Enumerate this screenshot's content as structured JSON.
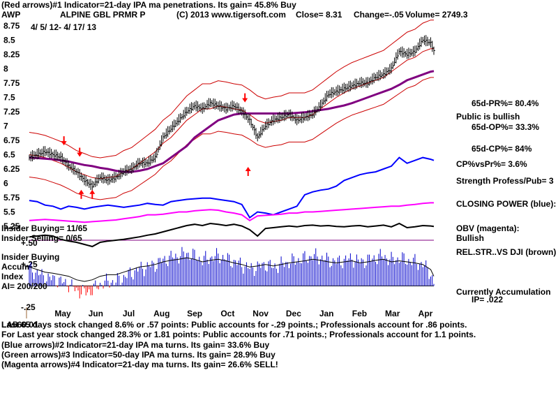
{
  "chart_data": {
    "type": "line",
    "title": "ALPINE GBL PRMR P",
    "symbol": "AWP",
    "date_range": "4/ 5/ 12- 4/ 17/ 13",
    "copyright": "(C) 2013 www.tigersoft.com",
    "close_label": "Close=  8.31",
    "change_label": "Change=-.05",
    "volume_label": "Volume= 2749.3",
    "price_axis": {
      "range": [
        5.25,
        8.75
      ],
      "ticks": [
        "8.75",
        "8.5",
        "8.25",
        "8",
        "7.75",
        "7.5",
        "7.25",
        "7",
        "6.75",
        "6.5",
        "6.25",
        "6",
        "5.75",
        "5.5",
        "5.25"
      ]
    },
    "x_tick_labels": [
      "May",
      "Jun",
      "Jul",
      "Aug",
      "Sep",
      "Oct",
      "Nov",
      "Dec",
      "Jan",
      "Feb",
      "Mar",
      "Apr"
    ],
    "accum_axis": {
      "range": [
        -0.25,
        0.5
      ],
      "ticks": [
        "+.50",
        "+.25",
        "-.25"
      ]
    },
    "price_series": {
      "name": "AWP close",
      "t": [
        0,
        5,
        10,
        15,
        20,
        25,
        30,
        35,
        40,
        45,
        50,
        55,
        60,
        65,
        70,
        75,
        80,
        85,
        90,
        95,
        100,
        105,
        110,
        115,
        120,
        125,
        130,
        135,
        140,
        145,
        150,
        155,
        160,
        165,
        170,
        175,
        180,
        185,
        190,
        195,
        200,
        205,
        210,
        215,
        220,
        225,
        230,
        235,
        240,
        245,
        250,
        255,
        257
      ],
      "values": [
        6.45,
        6.5,
        6.55,
        6.5,
        6.45,
        6.3,
        6.2,
        6.05,
        5.95,
        6.1,
        6.05,
        6.1,
        6.2,
        6.25,
        6.35,
        6.35,
        6.45,
        6.8,
        6.95,
        7.1,
        7.25,
        7.35,
        7.3,
        7.4,
        7.35,
        7.3,
        7.35,
        7.25,
        7.1,
        6.8,
        7.0,
        7.1,
        7.15,
        7.2,
        7.1,
        7.15,
        7.2,
        7.35,
        7.55,
        7.6,
        7.65,
        7.7,
        7.75,
        7.75,
        7.85,
        7.9,
        8.0,
        8.3,
        8.25,
        8.3,
        8.5,
        8.45,
        8.31
      ]
    },
    "ma_21_day": [
      6.5,
      6.48,
      6.45,
      6.4,
      6.35,
      6.28,
      6.2,
      6.15,
      6.1,
      6.08,
      6.1,
      6.12,
      6.2,
      6.25,
      6.35,
      6.45,
      6.55,
      6.7,
      6.8,
      6.95,
      7.1,
      7.2,
      7.3,
      7.3,
      7.35,
      7.33,
      7.3,
      7.28,
      7.2,
      7.1,
      7.05,
      7.08,
      7.1,
      7.15,
      7.15,
      7.15,
      7.2,
      7.3,
      7.4,
      7.5,
      7.58,
      7.65,
      7.7,
      7.75,
      7.8,
      7.85,
      7.95,
      8.05,
      8.15,
      8.2,
      8.3,
      8.35,
      8.35
    ],
    "ma_50_day": [
      6.45,
      6.44,
      6.43,
      6.42,
      6.4,
      6.38,
      6.35,
      6.32,
      6.3,
      6.27,
      6.25,
      6.22,
      6.2,
      6.2,
      6.22,
      6.25,
      6.3,
      6.35,
      6.45,
      6.55,
      6.65,
      6.8,
      6.9,
      7.0,
      7.1,
      7.15,
      7.2,
      7.22,
      7.22,
      7.22,
      7.22,
      7.22,
      7.22,
      7.22,
      7.23,
      7.24,
      7.26,
      7.28,
      7.3,
      7.33,
      7.36,
      7.4,
      7.45,
      7.5,
      7.55,
      7.6,
      7.65,
      7.72,
      7.8,
      7.85,
      7.9,
      7.95,
      7.96
    ],
    "closing_power": [
      5.7,
      5.68,
      5.62,
      5.6,
      5.55,
      5.6,
      5.58,
      5.55,
      5.58,
      5.6,
      5.62,
      5.6,
      5.58,
      5.6,
      5.62,
      5.65,
      5.63,
      5.62,
      5.68,
      5.7,
      5.72,
      5.73,
      5.74,
      5.74,
      5.72,
      5.7,
      5.68,
      5.63,
      5.4,
      5.5,
      5.48,
      5.45,
      5.5,
      5.55,
      5.6,
      5.8,
      5.85,
      5.88,
      5.9,
      5.95,
      6.05,
      6.1,
      6.15,
      6.18,
      6.2,
      6.25,
      6.3,
      6.45,
      6.35,
      6.4,
      6.45,
      6.42,
      6.4
    ],
    "obv_magenta": [
      5.35,
      5.36,
      5.37,
      5.36,
      5.35,
      5.34,
      5.33,
      5.32,
      5.33,
      5.34,
      5.35,
      5.36,
      5.38,
      5.4,
      5.42,
      5.45,
      5.45,
      5.46,
      5.48,
      5.5,
      5.5,
      5.52,
      5.53,
      5.54,
      5.53,
      5.5,
      5.48,
      5.45,
      5.35,
      5.43,
      5.44,
      5.45,
      5.46,
      5.48,
      5.48,
      5.5,
      5.5,
      5.51,
      5.52,
      5.53,
      5.54,
      5.55,
      5.56,
      5.57,
      5.58,
      5.59,
      5.6,
      5.6,
      5.62,
      5.63,
      5.65,
      5.66,
      5.66
    ],
    "rel_str_dji": [
      0.18,
      0.2,
      0.22,
      0.2,
      0.12,
      0.08,
      0.05,
      0.0,
      -0.05,
      0.05,
      0.08,
      0.1,
      0.12,
      0.15,
      0.18,
      0.22,
      0.25,
      0.3,
      0.35,
      0.4,
      0.45,
      0.48,
      0.45,
      0.5,
      0.48,
      0.45,
      0.48,
      0.44,
      0.35,
      0.2,
      0.38,
      0.4,
      0.42,
      0.44,
      0.42,
      0.45,
      0.46,
      0.44,
      0.45,
      0.43,
      0.42,
      0.44,
      0.45,
      0.42,
      0.44,
      0.46,
      0.42,
      0.5,
      0.4,
      0.42,
      0.45,
      0.44,
      0.43
    ],
    "accumulation_index": [
      0.2,
      0.15,
      0.1,
      0.08,
      0.05,
      0.02,
      -0.05,
      -0.08,
      -0.05,
      0.02,
      0.05,
      0.05,
      0.1,
      0.15,
      0.2,
      0.22,
      0.25,
      0.3,
      0.33,
      0.35,
      0.38,
      0.35,
      0.3,
      0.33,
      0.35,
      0.32,
      0.28,
      0.25,
      0.2,
      0.22,
      0.25,
      0.22,
      0.25,
      0.28,
      0.3,
      0.32,
      0.35,
      0.33,
      0.3,
      0.28,
      0.3,
      0.32,
      0.28,
      0.3,
      0.33,
      0.35,
      0.3,
      0.32,
      0.3,
      0.28,
      0.25,
      0.15,
      0.02
    ],
    "insider": {
      "buying": "Insider Buying=  11/65",
      "selling": "Insider Selling= 0/65",
      "legend": "Insider Buying",
      "ai": "AI= 200/200"
    },
    "accum_labels": {
      "line1": "Accum",
      "line2": "Index"
    },
    "arrows": [
      {
        "kind": "sell",
        "t": 22,
        "price": 6.7
      },
      {
        "kind": "sell",
        "t": 32,
        "price": 6.5
      },
      {
        "kind": "buy",
        "t": 33,
        "price": 5.85
      },
      {
        "kind": "buy",
        "t": 40,
        "price": 5.85
      },
      {
        "kind": "sell",
        "t": 137,
        "price": 7.45
      },
      {
        "kind": "buy",
        "t": 139,
        "price": 6.25
      }
    ],
    "header_indicator": "(Red arrows)#1 Indicator=21-day IPA ma penetrations. Its gain= 45.8% Buy",
    "indicators": [
      "(Blue arrows)#2 Indicator=21-day IPA ma turns. Its gain= 33.6% Buy",
      "(Green arrows)#3 Indicator=50-day IPA ma turns. Its gain= 28.9% Buy",
      "(Magenta arrows)#4 Indicator=21-day ma turns. Its gain= 26.6% SELL!"
    ],
    "summary": {
      "line1": "Last 65 days stock changed  8.6% or  .57 points:  Public accounts for -.29 points.;  Professionals account for  .86 points.",
      "line2": "For Last year stock changed  28.3% or 1.81 points:  Public accounts for  .71 points.;  Professionals account for  1.1 points.",
      "overlay": "LA560.01"
    },
    "right_panel": {
      "pr": "65d-PR%= 80.4%",
      "public": "Public is bullish",
      "op": "65d-OP%= 33.3%",
      "cp": "65d-CP%= 84%",
      "cpvspr": "CP%vsPr%=  3.6%",
      "strength": "Strength Profess/Pub= 3",
      "closing_power": "CLOSING POWER (blue):",
      "obv": "OBV (magenta):",
      "obv_status": "Bullish",
      "relstr": "REL.STR..VS DJI (brown)",
      "accum": "Currently Accumulation",
      "ip": "IP=  .022"
    },
    "colors": {
      "price": "#000000",
      "ma21": "#cc0000",
      "ma50": "#800080",
      "closing_power": "#0000ff",
      "obv": "#ff00ff",
      "accum_bars": "#0000cc",
      "arrows": "#ff0000"
    }
  }
}
